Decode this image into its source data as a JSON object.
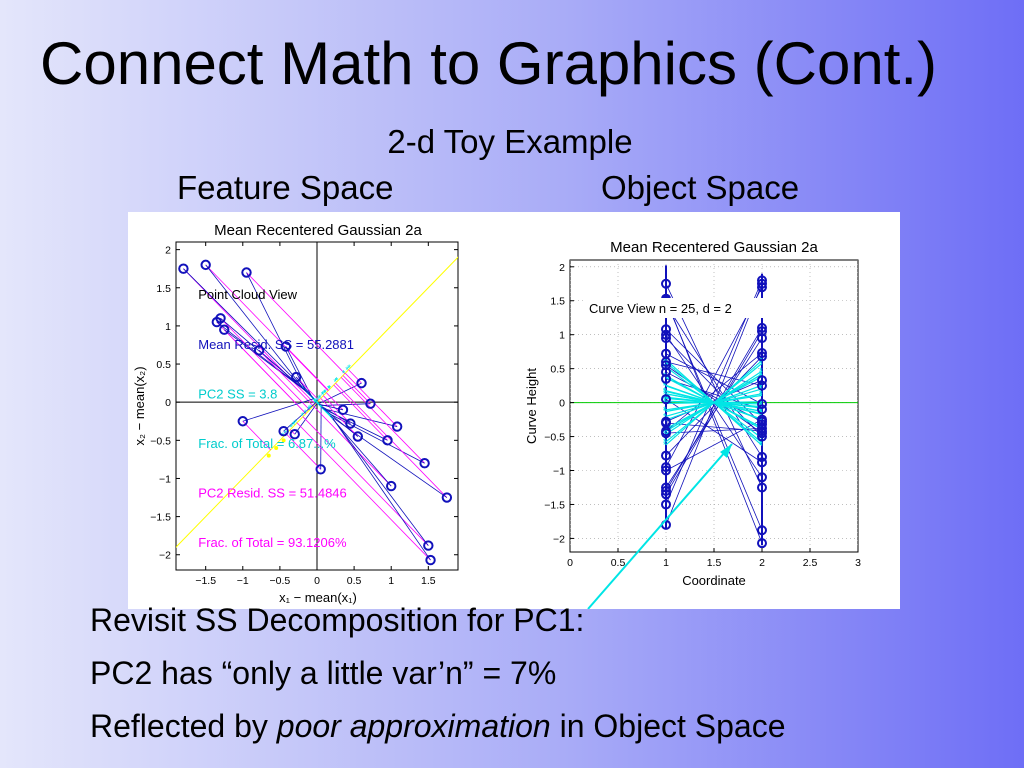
{
  "slide": {
    "title": "Connect Math to Graphics (Cont.)",
    "subtitle": "2-d Toy Example",
    "feature_space_label": "Feature Space",
    "object_space_label": "Object Space",
    "bullets": {
      "line1": "Revisit SS Decomposition for PC1:",
      "line2": "PC2 has “only a little var’n”  =  7%",
      "line3_before": "Reflected by ",
      "line3_emph": "poor approximation",
      "line3_after": " in Object Space"
    }
  },
  "colors": {
    "points": "#1111bb",
    "projection_lines": "#ff00ff",
    "pc_axis": "#ffff00",
    "pc2_projections": "#00e5e5",
    "zero_line": "#00cc00",
    "annotation_arrow": "#00e5e5"
  },
  "chart_data": [
    {
      "type": "scatter",
      "title": "Mean Recentered Gaussian 2a",
      "xlabel": "x₁ − mean(x₁)",
      "ylabel": "x₂ − mean(x₂)",
      "xlim": [
        -1.9,
        1.9
      ],
      "ylim": [
        -2.2,
        2.1
      ],
      "xticks": [
        -1.5,
        -1,
        -0.5,
        0,
        0.5,
        1,
        1.5
      ],
      "xtick_labels": [
        "−1.5",
        "−1",
        "−0.5",
        "0",
        "0.5",
        "1",
        "1.5"
      ],
      "yticks": [
        -2,
        -1.5,
        -1,
        -0.5,
        0,
        0.5,
        1,
        1.5,
        2
      ],
      "ytick_labels": [
        "−2",
        "−1.5",
        "−1",
        "−0.5",
        "0",
        "0.5",
        "1",
        "1.5",
        "2"
      ],
      "axes_lines": true,
      "pc_axis_slope": 1,
      "annotations": [
        {
          "text": "Point Cloud View",
          "color": "#000000",
          "at": [
            -1.6,
            1.35
          ]
        },
        {
          "text": "Mean Resid. SS = 55.2881",
          "color": "#1111bb",
          "at": [
            -1.6,
            0.7
          ]
        },
        {
          "text": "PC2 SS = 3.8",
          "color": "#00cccc",
          "at": [
            -1.6,
            0.05
          ]
        },
        {
          "text": "Frac. of Total = 6.87...%",
          "color": "#00cccc",
          "at": [
            -1.6,
            -0.6
          ]
        },
        {
          "text": "PC2 Resid. SS = 51.4846",
          "color": "#ff00ff",
          "at": [
            -1.6,
            -1.25
          ]
        },
        {
          "text": "Frac. of Total = 93.1206%",
          "color": "#ff00ff",
          "at": [
            -1.6,
            -1.9
          ]
        }
      ],
      "points": [
        [
          -1.8,
          1.75
        ],
        [
          -1.5,
          1.8
        ],
        [
          -0.95,
          1.7
        ],
        [
          -1.35,
          1.05
        ],
        [
          -1.3,
          1.1
        ],
        [
          -1.25,
          0.95
        ],
        [
          -0.78,
          0.68
        ],
        [
          -0.42,
          0.73
        ],
        [
          -0.28,
          0.33
        ],
        [
          -1.0,
          -0.25
        ],
        [
          -0.45,
          -0.38
        ],
        [
          -0.3,
          -0.42
        ],
        [
          0.05,
          -0.88
        ],
        [
          0.6,
          0.25
        ],
        [
          0.72,
          -0.02
        ],
        [
          0.45,
          -0.28
        ],
        [
          0.95,
          -0.5
        ],
        [
          1.08,
          -0.32
        ],
        [
          1.0,
          -1.1
        ],
        [
          1.45,
          -0.8
        ],
        [
          1.5,
          -1.88
        ],
        [
          1.53,
          -2.07
        ],
        [
          1.75,
          -1.25
        ],
        [
          0.55,
          -0.45
        ],
        [
          0.35,
          -0.1
        ]
      ],
      "series": [
        {
          "name": "Mean Resid. SS = 55.2881"
        },
        {
          "name": "PC2 SS = 3.8"
        },
        {
          "name": "PC2 Resid. SS = 51.4846"
        }
      ]
    },
    {
      "type": "line",
      "title": "Mean Recentered Gaussian 2a",
      "xlabel": "Coordinate",
      "ylabel": "Curve Height",
      "xlim": [
        0,
        3
      ],
      "ylim": [
        -2.2,
        2.1
      ],
      "xticks": [
        0,
        0.5,
        1,
        1.5,
        2,
        2.5,
        3
      ],
      "xtick_labels": [
        "0",
        "0.5",
        "1",
        "1.5",
        "2",
        "2.5",
        "3"
      ],
      "yticks": [
        -2,
        -1.5,
        -1,
        -0.5,
        0,
        0.5,
        1,
        1.5,
        2
      ],
      "ytick_labels": [
        "−2",
        "−1.5",
        "−1",
        "−0.5",
        "0",
        "0.5",
        "1",
        "1.5",
        "2"
      ],
      "annotation": "Curve View n = 25, d = 2",
      "n": 25,
      "d": 2
    }
  ]
}
